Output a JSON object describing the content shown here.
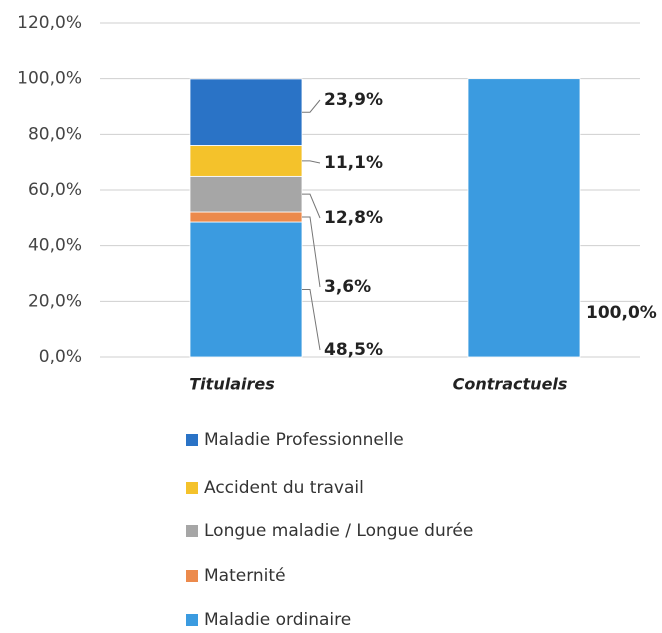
{
  "chart_data": {
    "type": "stacked_bar",
    "categories": [
      "Titulaires",
      "Contractuels"
    ],
    "series": [
      {
        "name": "Maladie ordinaire",
        "color": "#3b9be0",
        "values": [
          48.5,
          100
        ],
        "value_labels": [
          "48,5%",
          "100,0%"
        ]
      },
      {
        "name": "Maternité",
        "color": "#ec8a4c",
        "values": [
          3.6,
          0
        ],
        "value_labels": [
          "3,6%",
          null
        ]
      },
      {
        "name": "Longue maladie / Longue durée",
        "color": "#a6a6a6",
        "values": [
          12.8,
          0
        ],
        "value_labels": [
          "12,8%",
          null
        ]
      },
      {
        "name": "Accident du travail",
        "color": "#f4c22b",
        "values": [
          11.1,
          0
        ],
        "value_labels": [
          "11,1%",
          null
        ]
      },
      {
        "name": "Maladie Professionnelle",
        "color": "#2a73c6",
        "values": [
          23.9,
          0
        ],
        "value_labels": [
          "23,9%",
          null
        ]
      }
    ],
    "ylim": [
      0,
      120
    ],
    "yticks": [
      {
        "value": 0,
        "label": "0,0%"
      },
      {
        "value": 20,
        "label": "20,0%"
      },
      {
        "value": 40,
        "label": "40,0%"
      },
      {
        "value": 60,
        "label": "60,0%"
      },
      {
        "value": 80,
        "label": "80,0%"
      },
      {
        "value": 100,
        "label": "100,0%"
      },
      {
        "value": 120,
        "label": "120,0%"
      }
    ],
    "grid": true
  }
}
